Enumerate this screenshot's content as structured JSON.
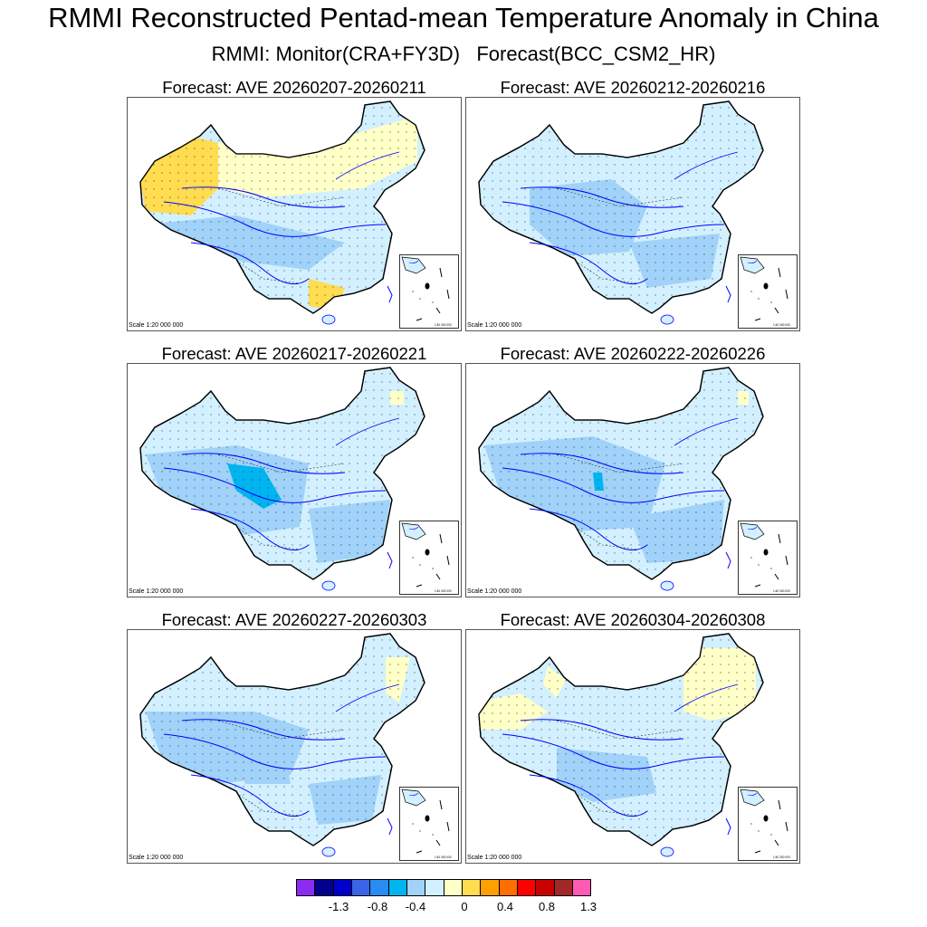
{
  "figure": {
    "title": "RMMI Reconstructed Pentad-mean Temperature Anomaly in China",
    "subtitle": "RMMI: Monitor(CRA+FY3D)   Forecast(BCC_CSM2_HR)",
    "scale_label": "Scale 1:20 000 000",
    "inset_scale_label": "1:40 000 000"
  },
  "panels": [
    {
      "title": "Forecast: AVE 20260207-20260211",
      "dominant_anomaly": "warm west, neutral-cool south"
    },
    {
      "title": "Forecast: AVE 20260212-20260216",
      "dominant_anomaly": "cool"
    },
    {
      "title": "Forecast: AVE 20260217-20260221",
      "dominant_anomaly": "cool"
    },
    {
      "title": "Forecast: AVE 20260222-20260226",
      "dominant_anomaly": "cool"
    },
    {
      "title": "Forecast: AVE 20260227-20260303",
      "dominant_anomaly": "cool"
    },
    {
      "title": "Forecast: AVE 20260304-20260308",
      "dominant_anomaly": "cool, warm northeast"
    }
  ],
  "colorbar": {
    "colors": [
      "#8c2cf0",
      "#00008c",
      "#0000c8",
      "#3c64e6",
      "#288cf0",
      "#00b4f0",
      "#a0d2fa",
      "#d2f0ff",
      "#ffffc8",
      "#ffdc50",
      "#ffa000",
      "#ff6e00",
      "#ff0000",
      "#c80000",
      "#a02828",
      "#ff5ab4"
    ],
    "labels": [
      "-1.3",
      "-0.8",
      "-0.4",
      "0",
      "0.4",
      "0.8",
      "1.3"
    ]
  },
  "colors": {
    "land_default": "#d2f0ff",
    "cool_mid": "#a0d2fa",
    "cool_strong": "#00b4f0",
    "warm_light": "#ffffc8",
    "warm_mid": "#ffdc50",
    "river": "#0000ff",
    "border": "#000000"
  }
}
